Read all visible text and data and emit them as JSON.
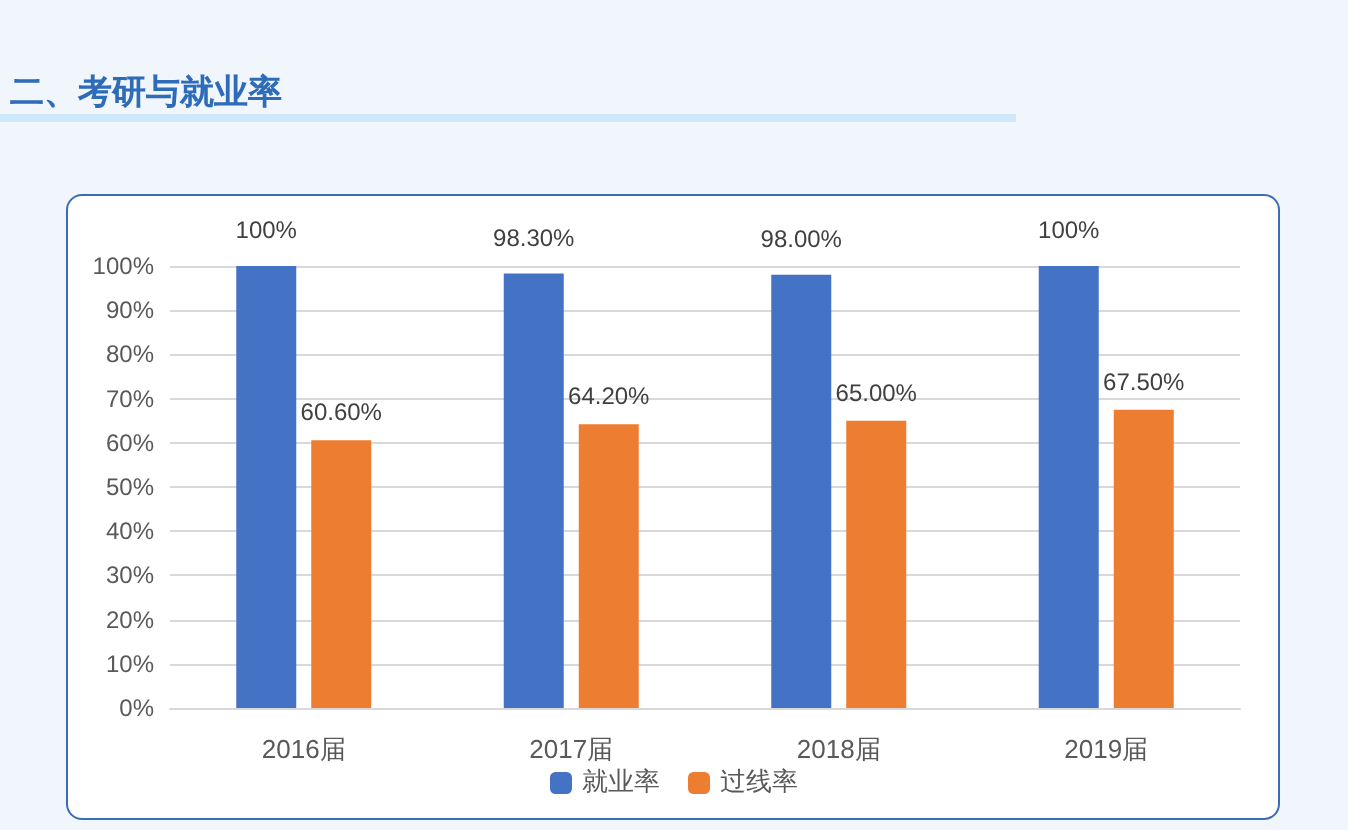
{
  "chart_data": {
    "type": "bar",
    "title": "二、考研与就业率",
    "categories": [
      "2016届",
      "2017届",
      "2018届",
      "2019届"
    ],
    "series": [
      {
        "name": "就业率",
        "color": "#4472c4",
        "values": [
          100,
          98.3,
          98,
          100
        ],
        "value_labels": [
          "100%",
          "98.30%",
          "98.00%",
          "100%"
        ]
      },
      {
        "name": "过线率",
        "color": "#ed7d31",
        "values": [
          60.6,
          64.2,
          65,
          67.5
        ],
        "value_labels": [
          "60.60%",
          "64.20%",
          "65.00%",
          "67.50%"
        ]
      }
    ],
    "ylim": [
      0,
      100
    ],
    "yticks": [
      {
        "value": 0,
        "label": "0%"
      },
      {
        "value": 10,
        "label": "10%"
      },
      {
        "value": 20,
        "label": "20%"
      },
      {
        "value": 30,
        "label": "30%"
      },
      {
        "value": 40,
        "label": "40%"
      },
      {
        "value": 50,
        "label": "50%"
      },
      {
        "value": 60,
        "label": "60%"
      },
      {
        "value": 70,
        "label": "70%"
      },
      {
        "value": 80,
        "label": "80%"
      },
      {
        "value": 90,
        "label": "90%"
      },
      {
        "value": 100,
        "label": "100%"
      }
    ],
    "grid": "y",
    "legend": "bottom"
  }
}
